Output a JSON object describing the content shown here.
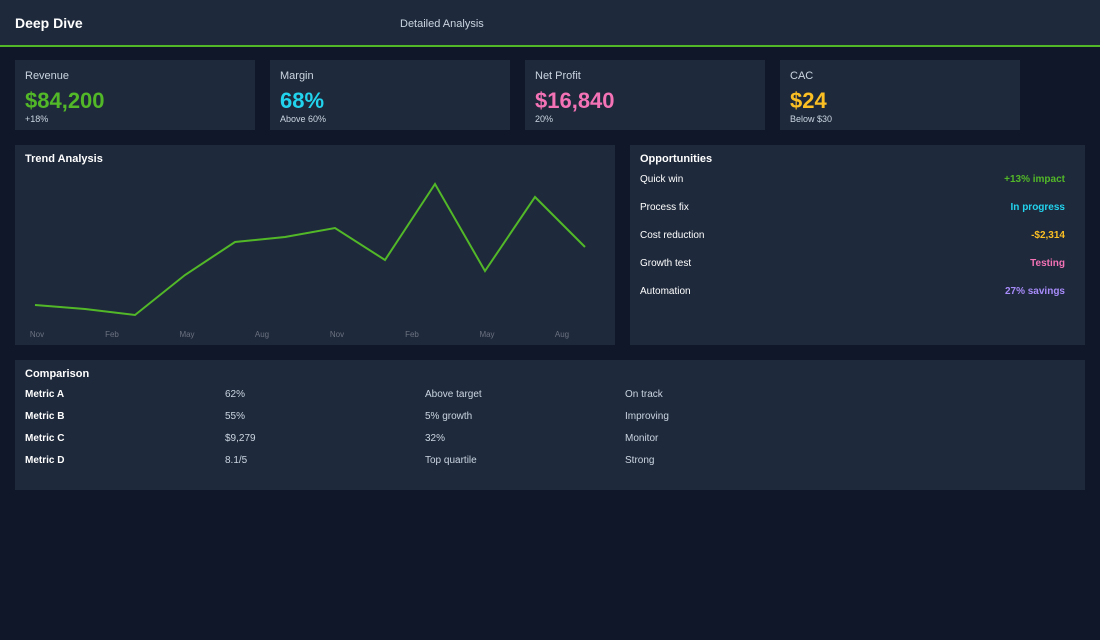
{
  "header": {
    "title": "Deep Dive",
    "subtitle": "Detailed Analysis"
  },
  "kpis": [
    {
      "label": "Revenue",
      "value": "$84,200",
      "note": "+18%",
      "color": "#52b828"
    },
    {
      "label": "Margin",
      "value": "68%",
      "note": "Above 60%",
      "color": "#22d3ee"
    },
    {
      "label": "Net Profit",
      "value": "$16,840",
      "note": "20%",
      "color": "#f472b6"
    },
    {
      "label": "CAC",
      "value": "$24",
      "note": "Below $30",
      "color": "#fbbf24"
    }
  ],
  "chart_data": {
    "type": "line",
    "title": "Trend Analysis",
    "x_labels": [
      "Nov",
      "Feb",
      "May",
      "Aug",
      "Nov",
      "Feb",
      "May",
      "Aug"
    ],
    "values": [
      15,
      11,
      5,
      45,
      78,
      83,
      92,
      60,
      136,
      49,
      123,
      73
    ],
    "color": "#52b828",
    "ylim": [
      0,
      150
    ]
  },
  "opportunities": {
    "title": "Opportunities",
    "items": [
      {
        "name": "Quick win",
        "status": "+13% impact",
        "color": "#52b828"
      },
      {
        "name": "Process fix",
        "status": "In progress",
        "color": "#22d3ee"
      },
      {
        "name": "Cost reduction",
        "status": "-$2,314",
        "color": "#fbbf24"
      },
      {
        "name": "Growth test",
        "status": "Testing",
        "color": "#f472b6"
      },
      {
        "name": "Automation",
        "status": "27% savings",
        "color": "#a78bfa"
      }
    ]
  },
  "comparison": {
    "title": "Comparison",
    "rows": [
      [
        "Metric A",
        "62%",
        "Above target",
        "On track"
      ],
      [
        "Metric B",
        "55%",
        "5% growth",
        "Improving"
      ],
      [
        "Metric C",
        "$9,279",
        "32%",
        "Monitor"
      ],
      [
        "Metric D",
        "8.1/5",
        "Top quartile",
        "Strong"
      ]
    ]
  }
}
